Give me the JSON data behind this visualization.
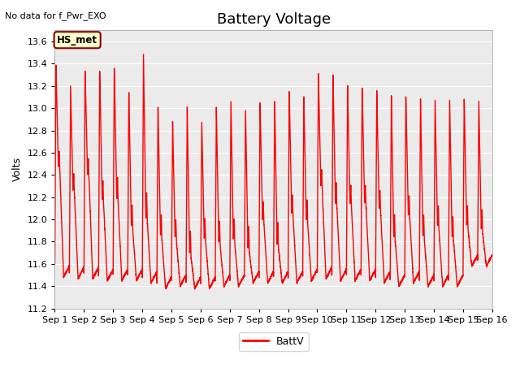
{
  "title": "Battery Voltage",
  "top_left_text": "No data for f_Pwr_EXO",
  "ylabel": "Volts",
  "ylim": [
    11.2,
    13.7
  ],
  "yticks": [
    11.2,
    11.4,
    11.6,
    11.8,
    12.0,
    12.2,
    12.4,
    12.6,
    12.8,
    13.0,
    13.2,
    13.4,
    13.6
  ],
  "xtick_labels": [
    "Sep 1",
    "Sep 2",
    "Sep 3",
    "Sep 4",
    "Sep 5",
    "Sep 6",
    "Sep 7",
    "Sep 8",
    "Sep 9",
    "Sep 10",
    "Sep 11",
    "Sep 12",
    "Sep 13",
    "Sep 14",
    "Sep 15",
    "Sep 16"
  ],
  "line_color": "#ff0000",
  "line_width": 1.0,
  "bg_color": "#ebebeb",
  "fig_color": "#ffffff",
  "legend_label": "BattV",
  "hs_met_label": "HS_met",
  "hs_met_bg": "#ffffcc",
  "hs_met_border": "#8b0000",
  "grid_color": "#ffffff",
  "title_fontsize": 13,
  "label_fontsize": 9,
  "tick_fontsize": 8,
  "cycles_per_day": 2,
  "day_params": [
    {
      "peak1": 13.38,
      "peak2": 13.2,
      "mid1": 12.48,
      "mid2": 12.27,
      "trough1": 11.48,
      "trough2": 11.47
    },
    {
      "peak1": 13.33,
      "peak2": 13.33,
      "mid1": 12.41,
      "mid2": 12.18,
      "trough1": 11.47,
      "trough2": 11.45
    },
    {
      "peak1": 13.35,
      "peak2": 13.14,
      "mid1": 12.2,
      "mid2": 11.95,
      "trough1": 11.45,
      "trough2": 11.45
    },
    {
      "peak1": 13.48,
      "peak2": 13.0,
      "mid1": 12.02,
      "mid2": 11.86,
      "trough1": 11.43,
      "trough2": 11.38
    },
    {
      "peak1": 12.88,
      "peak2": 13.0,
      "mid1": 11.84,
      "mid2": 11.7,
      "trough1": 11.4,
      "trough2": 11.38
    },
    {
      "peak1": 12.87,
      "peak2": 13.0,
      "mid1": 11.84,
      "mid2": 11.8,
      "trough1": 11.38,
      "trough2": 11.4
    },
    {
      "peak1": 13.05,
      "peak2": 12.98,
      "mid1": 11.82,
      "mid2": 11.75,
      "trough1": 11.4,
      "trough2": 11.43
    },
    {
      "peak1": 13.05,
      "peak2": 13.06,
      "mid1": 12.0,
      "mid2": 11.78,
      "trough1": 11.43,
      "trough2": 11.43
    },
    {
      "peak1": 13.15,
      "peak2": 13.1,
      "mid1": 12.05,
      "mid2": 12.0,
      "trough1": 11.43,
      "trough2": 11.45
    },
    {
      "peak1": 13.3,
      "peak2": 13.3,
      "mid1": 12.3,
      "mid2": 12.15,
      "trough1": 11.47,
      "trough2": 11.45
    },
    {
      "peak1": 13.2,
      "peak2": 13.19,
      "mid1": 12.15,
      "mid2": 12.15,
      "trough1": 11.45,
      "trough2": 11.45
    },
    {
      "peak1": 13.15,
      "peak2": 13.11,
      "mid1": 12.1,
      "mid2": 11.85,
      "trough1": 11.43,
      "trough2": 11.4
    },
    {
      "peak1": 13.1,
      "peak2": 13.08,
      "mid1": 12.05,
      "mid2": 11.85,
      "trough1": 11.43,
      "trough2": 11.4
    },
    {
      "peak1": 13.07,
      "peak2": 13.07,
      "mid1": 11.95,
      "mid2": 11.85,
      "trough1": 11.4,
      "trough2": 11.4
    },
    {
      "peak1": 13.07,
      "peak2": 13.06,
      "mid1": 11.95,
      "mid2": 11.92,
      "trough1": 11.58,
      "trough2": 11.58
    }
  ]
}
